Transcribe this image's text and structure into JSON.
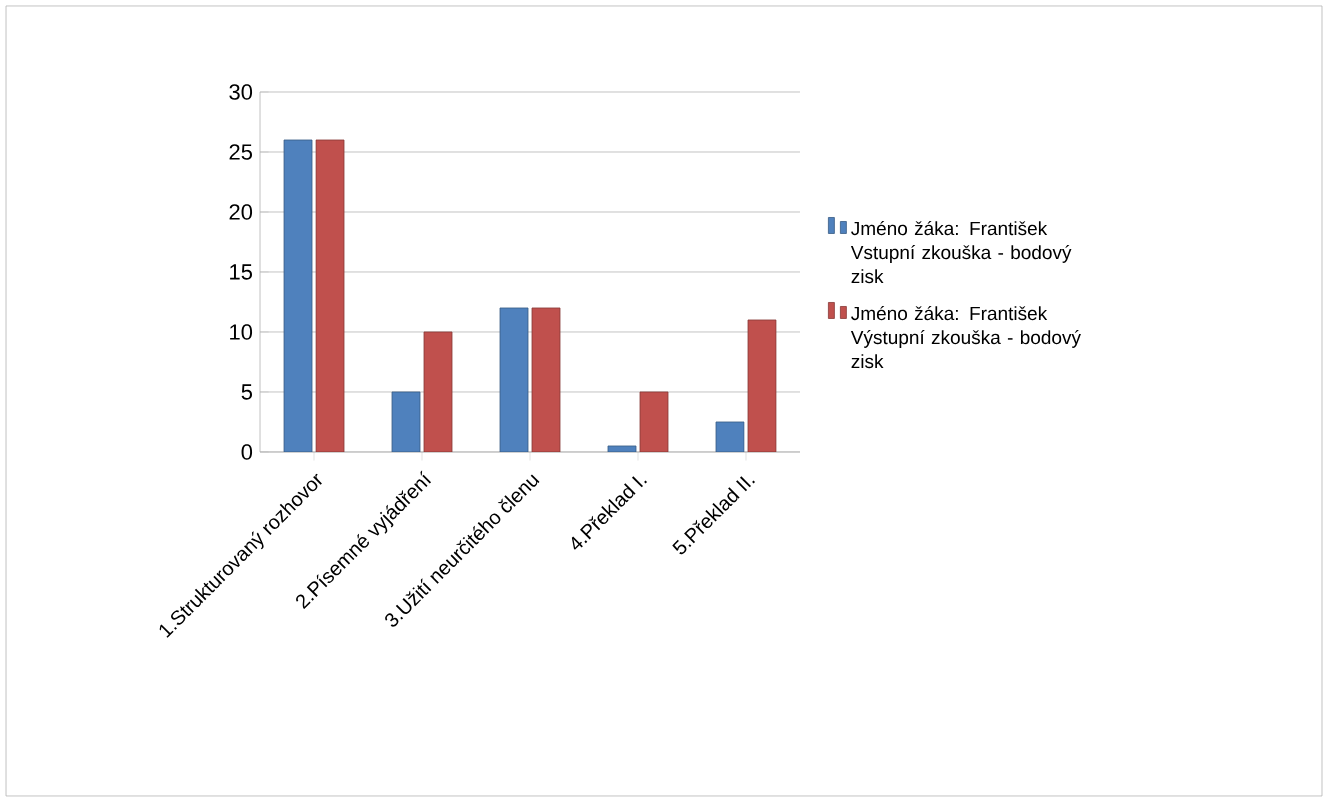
{
  "chart_data": {
    "type": "bar",
    "categories": [
      "1.Strukturovaný rozhovor",
      "2.Písemné vyjádření",
      "3.Užití neurčitého členu",
      "4.Překlad I.",
      "5.Překlad II."
    ],
    "series": [
      {
        "name": "Jméno žáka: František Vstupní zkouška - bodový zisk",
        "color": "#4f81bd",
        "values": [
          26,
          5,
          12,
          0.5,
          2.5
        ]
      },
      {
        "name": "Jméno žáka: František Výstupní zkouška - bodový zisk",
        "color": "#c0504d",
        "values": [
          26,
          10,
          12,
          5,
          11
        ]
      }
    ],
    "ylim": [
      0,
      30
    ],
    "yticks": [
      0,
      5,
      10,
      15,
      20,
      25,
      30
    ],
    "grid": "y",
    "legend": "right"
  }
}
